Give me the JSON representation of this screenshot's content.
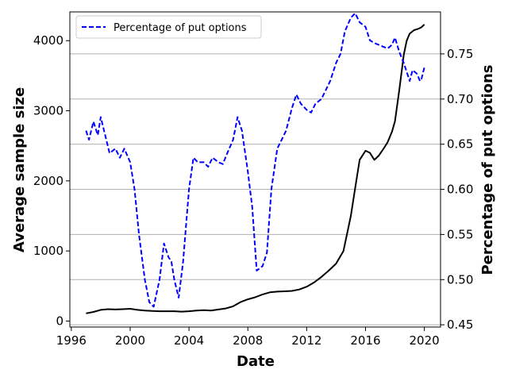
{
  "chart_data": {
    "type": "line",
    "xlabel": "Date",
    "ylabel_left": "Average sample size",
    "ylabel_right": "Percentage of put options",
    "x_ticks": [
      "1996",
      "2000",
      "2004",
      "2008",
      "2012",
      "2016",
      "2020"
    ],
    "y_left_ticks": [
      "0",
      "1000",
      "2000",
      "3000",
      "4000"
    ],
    "y_right_ticks": [
      "0.45",
      "0.50",
      "0.55",
      "0.60",
      "0.65",
      "0.70",
      "0.75"
    ],
    "xlim": [
      1995.9,
      2021.1
    ],
    "ylim_left": [
      -85,
      4410
    ],
    "ylim_right": [
      0.4475,
      0.7965
    ],
    "grid": "horizontal, right axis",
    "legend_position": "top-left",
    "legend": [
      {
        "label": "Percentage of put options",
        "style": "dashed",
        "color": "#0000ff"
      }
    ],
    "series": [
      {
        "name": "Average sample size",
        "axis": "left",
        "color": "#000000",
        "style": "solid",
        "x": [
          1997.0,
          1997.5,
          1998.0,
          1998.5,
          1999.0,
          1999.5,
          2000.0,
          2000.5,
          2001.0,
          2001.5,
          2002.0,
          2002.5,
          2003.0,
          2003.5,
          2004.0,
          2004.5,
          2005.0,
          2005.5,
          2006.0,
          2006.5,
          2007.0,
          2007.5,
          2008.0,
          2008.5,
          2009.0,
          2009.5,
          2010.0,
          2010.5,
          2011.0,
          2011.5,
          2012.0,
          2012.5,
          2013.0,
          2013.5,
          2014.0,
          2014.5,
          2015.0,
          2015.3,
          2015.6,
          2016.0,
          2016.3,
          2016.6,
          2016.9,
          2017.2,
          2017.5,
          2017.8,
          2018.0,
          2018.3,
          2018.6,
          2018.8,
          2019.0,
          2019.3,
          2019.6,
          2019.8,
          2020.0
        ],
        "y": [
          110,
          130,
          160,
          170,
          165,
          170,
          175,
          160,
          150,
          145,
          140,
          140,
          140,
          135,
          140,
          150,
          155,
          150,
          165,
          180,
          210,
          270,
          310,
          340,
          380,
          410,
          420,
          425,
          430,
          450,
          490,
          550,
          630,
          720,
          820,
          1000,
          1500,
          1900,
          2300,
          2430,
          2400,
          2300,
          2360,
          2450,
          2550,
          2700,
          2850,
          3300,
          3800,
          4000,
          4100,
          4150,
          4170,
          4190,
          4230
        ]
      },
      {
        "name": "Percentage of put options",
        "axis": "right",
        "color": "#0000ff",
        "style": "dashed",
        "x": [
          1997.0,
          1997.2,
          1997.5,
          1997.8,
          1998.0,
          1998.3,
          1998.6,
          1999.0,
          1999.3,
          1999.6,
          2000.0,
          2000.3,
          2000.6,
          2001.0,
          2001.3,
          2001.6,
          2002.0,
          2002.3,
          2002.6,
          2002.8,
          2003.0,
          2003.3,
          2003.6,
          2004.0,
          2004.3,
          2004.6,
          2005.0,
          2005.3,
          2005.6,
          2006.0,
          2006.3,
          2006.6,
          2007.0,
          2007.3,
          2007.6,
          2008.0,
          2008.3,
          2008.6,
          2009.0,
          2009.3,
          2009.6,
          2010.0,
          2010.3,
          2010.6,
          2011.0,
          2011.3,
          2011.6,
          2012.0,
          2012.3,
          2012.6,
          2013.0,
          2013.3,
          2013.6,
          2014.0,
          2014.3,
          2014.6,
          2015.0,
          2015.3,
          2015.6,
          2016.0,
          2016.3,
          2016.6,
          2016.9,
          2017.2,
          2017.5,
          2017.8,
          2018.0,
          2018.3,
          2018.6,
          2019.0,
          2019.2,
          2019.5,
          2019.7,
          2019.8,
          2020.0
        ],
        "y": [
          0.665,
          0.655,
          0.675,
          0.66,
          0.68,
          0.66,
          0.64,
          0.645,
          0.635,
          0.645,
          0.63,
          0.6,
          0.55,
          0.5,
          0.475,
          0.47,
          0.5,
          0.54,
          0.525,
          0.52,
          0.5,
          0.48,
          0.52,
          0.6,
          0.635,
          0.63,
          0.63,
          0.625,
          0.635,
          0.63,
          0.628,
          0.64,
          0.655,
          0.68,
          0.665,
          0.62,
          0.58,
          0.51,
          0.515,
          0.53,
          0.6,
          0.645,
          0.655,
          0.665,
          0.69,
          0.705,
          0.695,
          0.688,
          0.685,
          0.695,
          0.7,
          0.71,
          0.72,
          0.74,
          0.75,
          0.775,
          0.79,
          0.795,
          0.785,
          0.78,
          0.765,
          0.762,
          0.76,
          0.758,
          0.756,
          0.76,
          0.768,
          0.752,
          0.74,
          0.72,
          0.732,
          0.728,
          0.72,
          0.722,
          0.735
        ]
      }
    ]
  }
}
